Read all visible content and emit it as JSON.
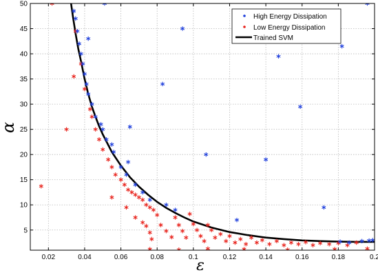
{
  "chart_data": {
    "type": "scatter",
    "title": "",
    "xlabel": "ε",
    "ylabel": "α",
    "xlim": [
      0.01,
      0.2
    ],
    "ylim": [
      1,
      50
    ],
    "xticks": [
      "0.02",
      "0.04",
      "0.06",
      "0.08",
      "0.1",
      "0.12",
      "0.14",
      "0.16",
      "0.18",
      "0.2"
    ],
    "yticks": [
      "5",
      "10",
      "15",
      "20",
      "25",
      "30",
      "35",
      "40",
      "45",
      "50"
    ],
    "xtick_values": [
      0.02,
      0.04,
      0.06,
      0.08,
      0.1,
      0.12,
      0.14,
      0.16,
      0.18,
      0.2
    ],
    "ytick_values": [
      5,
      10,
      15,
      20,
      25,
      30,
      35,
      40,
      45,
      50
    ],
    "grid": true,
    "legend_position": "top-right",
    "series": [
      {
        "name": "High Energy Dissipation",
        "marker": "*",
        "color": "#1f3fdc",
        "points": [
          [
            0.034,
            48.5
          ],
          [
            0.035,
            47.0
          ],
          [
            0.036,
            44.5
          ],
          [
            0.037,
            42.0
          ],
          [
            0.038,
            40.0
          ],
          [
            0.039,
            38.0
          ],
          [
            0.04,
            36.0
          ],
          [
            0.041,
            34.0
          ],
          [
            0.042,
            32.0
          ],
          [
            0.044,
            30.0
          ],
          [
            0.046,
            27.5
          ],
          [
            0.049,
            26.0
          ],
          [
            0.05,
            25.0
          ],
          [
            0.052,
            23.0
          ],
          [
            0.055,
            22.0
          ],
          [
            0.056,
            20.5
          ],
          [
            0.06,
            17.5
          ],
          [
            0.063,
            16.0
          ],
          [
            0.064,
            18.5
          ],
          [
            0.065,
            25.5
          ],
          [
            0.068,
            14.0
          ],
          [
            0.072,
            12.5
          ],
          [
            0.076,
            11.0
          ],
          [
            0.085,
            10.0
          ],
          [
            0.09,
            9.0
          ],
          [
            0.042,
            43.0
          ],
          [
            0.051,
            50.0
          ],
          [
            0.083,
            34.0
          ],
          [
            0.094,
            45.0
          ],
          [
            0.107,
            20.0
          ],
          [
            0.124,
            7.0
          ],
          [
            0.14,
            19.0
          ],
          [
            0.147,
            39.5
          ],
          [
            0.159,
            29.5
          ],
          [
            0.172,
            9.5
          ],
          [
            0.182,
            41.5
          ],
          [
            0.196,
            50.0
          ],
          [
            0.181,
            2.7
          ],
          [
            0.186,
            2.5
          ],
          [
            0.193,
            2.8
          ],
          [
            0.197,
            2.9
          ],
          [
            0.199,
            3.0
          ]
        ]
      },
      {
        "name": "Low Energy Dissipation",
        "marker": "*",
        "color": "#e8231c",
        "points": [
          [
            0.022,
            50.0
          ],
          [
            0.016,
            13.7
          ],
          [
            0.03,
            25.0
          ],
          [
            0.034,
            35.5
          ],
          [
            0.035,
            44.5
          ],
          [
            0.038,
            38.0
          ],
          [
            0.04,
            33.0
          ],
          [
            0.043,
            29.0
          ],
          [
            0.044,
            27.5
          ],
          [
            0.046,
            25.0
          ],
          [
            0.048,
            23.0
          ],
          [
            0.05,
            21.0
          ],
          [
            0.053,
            19.0
          ],
          [
            0.055,
            17.5
          ],
          [
            0.057,
            16.0
          ],
          [
            0.06,
            15.0
          ],
          [
            0.062,
            14.0
          ],
          [
            0.064,
            13.0
          ],
          [
            0.066,
            12.5
          ],
          [
            0.068,
            12.0
          ],
          [
            0.07,
            11.5
          ],
          [
            0.072,
            11.0
          ],
          [
            0.074,
            10.0
          ],
          [
            0.076,
            9.5
          ],
          [
            0.078,
            9.0
          ],
          [
            0.055,
            11.5
          ],
          [
            0.063,
            9.5
          ],
          [
            0.068,
            7.5
          ],
          [
            0.072,
            6.5
          ],
          [
            0.074,
            5.8
          ],
          [
            0.076,
            4.5
          ],
          [
            0.077,
            3.2
          ],
          [
            0.08,
            8.0
          ],
          [
            0.082,
            6.0
          ],
          [
            0.085,
            4.8
          ],
          [
            0.088,
            3.6
          ],
          [
            0.09,
            7.5
          ],
          [
            0.092,
            6.0
          ],
          [
            0.094,
            4.8
          ],
          [
            0.096,
            3.5
          ],
          [
            0.098,
            8.2
          ],
          [
            0.1,
            6.2
          ],
          [
            0.102,
            5.0
          ],
          [
            0.104,
            3.8
          ],
          [
            0.106,
            2.8
          ],
          [
            0.108,
            6.0
          ],
          [
            0.11,
            5.0
          ],
          [
            0.112,
            3.5
          ],
          [
            0.115,
            4.2
          ],
          [
            0.118,
            2.8
          ],
          [
            0.12,
            3.8
          ],
          [
            0.123,
            2.5
          ],
          [
            0.126,
            3.2
          ],
          [
            0.129,
            2.2
          ],
          [
            0.132,
            3.5
          ],
          [
            0.135,
            2.5
          ],
          [
            0.138,
            3.0
          ],
          [
            0.142,
            2.2
          ],
          [
            0.146,
            2.8
          ],
          [
            0.15,
            2.0
          ],
          [
            0.154,
            2.5
          ],
          [
            0.158,
            2.2
          ],
          [
            0.162,
            2.6
          ],
          [
            0.166,
            2.0
          ],
          [
            0.17,
            2.4
          ],
          [
            0.175,
            2.2
          ],
          [
            0.18,
            2.4
          ],
          [
            0.185,
            2.0
          ],
          [
            0.19,
            2.5
          ],
          [
            0.076,
            1.2
          ],
          [
            0.092,
            1.1
          ],
          [
            0.108,
            1.3
          ],
          [
            0.128,
            1.2
          ],
          [
            0.152,
            1.1
          ],
          [
            0.178,
            1.2
          ],
          [
            0.196,
            1.3
          ]
        ]
      }
    ],
    "curve": {
      "name": "Trained SVM",
      "color": "#000000",
      "points": [
        [
          0.0325,
          50.0
        ],
        [
          0.0335,
          47.5
        ],
        [
          0.035,
          44.0
        ],
        [
          0.0365,
          41.0
        ],
        [
          0.038,
          38.5
        ],
        [
          0.04,
          35.0
        ],
        [
          0.042,
          32.0
        ],
        [
          0.044,
          29.5
        ],
        [
          0.046,
          27.5
        ],
        [
          0.048,
          25.6
        ],
        [
          0.05,
          24.0
        ],
        [
          0.055,
          20.5
        ],
        [
          0.06,
          17.8
        ],
        [
          0.065,
          15.5
        ],
        [
          0.07,
          13.6
        ],
        [
          0.075,
          12.0
        ],
        [
          0.08,
          10.6
        ],
        [
          0.085,
          9.4
        ],
        [
          0.09,
          8.4
        ],
        [
          0.095,
          7.5
        ],
        [
          0.1,
          6.7
        ],
        [
          0.11,
          5.5
        ],
        [
          0.12,
          4.6
        ],
        [
          0.13,
          4.0
        ],
        [
          0.14,
          3.5
        ],
        [
          0.15,
          3.2
        ],
        [
          0.16,
          2.95
        ],
        [
          0.17,
          2.8
        ],
        [
          0.18,
          2.7
        ],
        [
          0.19,
          2.65
        ],
        [
          0.2,
          2.65
        ]
      ]
    }
  }
}
